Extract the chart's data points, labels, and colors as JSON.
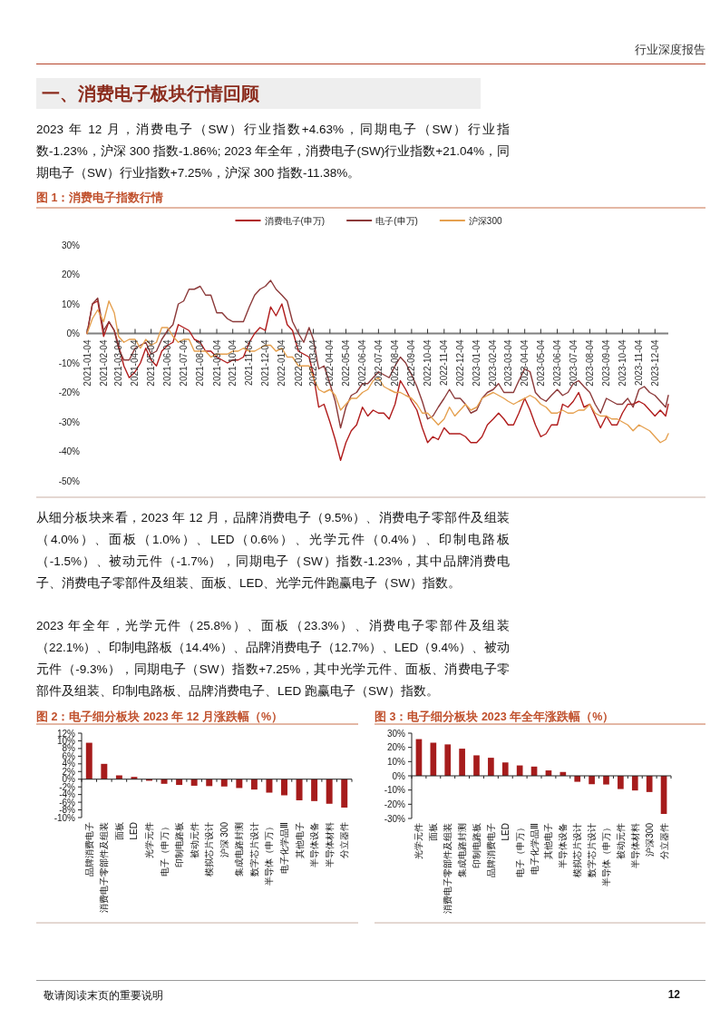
{
  "chart_data": [
    {
      "type": "other",
      "title": "一、消费电子板块行情回顾",
      "annotations": [
        "行业深度报告",
        "2023 年 12 月，消费电子（SW）行业指数+4.63%，同期电子（SW）行业指数-1.23%，沪深 300 指数-1.86%; 2023 年全年，消费电子(SW)行业指数+21.04%，同期电子（SW）行业指数+7.25%，沪深 300 指数-11.38%。"
      ]
    },
    {
      "type": "line",
      "title": "图 1：消费电子指数行情",
      "x": [
        "2021-01-04",
        "2021-01-14",
        "2021-01-24",
        "2021-02-04",
        "2021-02-14",
        "2021-02-24",
        "2021-03-04",
        "2021-03-14",
        "2021-03-24",
        "2021-04-04",
        "2021-04-14",
        "2021-04-24",
        "2021-05-04",
        "2021-05-14",
        "2021-05-24",
        "2021-06-04",
        "2021-06-14",
        "2021-06-24",
        "2021-07-04",
        "2021-07-14",
        "2021-07-24",
        "2021-08-04",
        "2021-08-14",
        "2021-08-24",
        "2021-09-04",
        "2021-09-14",
        "2021-09-24",
        "2021-10-04",
        "2021-10-14",
        "2021-10-24",
        "2021-11-04",
        "2021-11-14",
        "2021-11-24",
        "2021-12-04",
        "2021-12-14",
        "2021-12-24",
        "2022-01-04",
        "2022-01-14",
        "2022-01-24",
        "2022-02-04",
        "2022-02-14",
        "2022-02-24",
        "2022-03-04",
        "2022-03-14",
        "2022-03-24",
        "2022-04-04",
        "2022-04-14",
        "2022-04-24",
        "2022-05-04",
        "2022-05-14",
        "2022-05-24",
        "2022-06-04",
        "2022-06-14",
        "2022-06-24",
        "2022-07-04",
        "2022-07-14",
        "2022-07-24",
        "2022-08-04",
        "2022-08-14",
        "2022-08-24",
        "2022-09-04",
        "2022-09-14",
        "2022-09-24",
        "2022-10-04",
        "2022-10-14",
        "2022-10-24",
        "2022-11-04",
        "2022-11-14",
        "2022-11-24",
        "2022-12-04",
        "2022-12-14",
        "2022-12-24",
        "2023-01-04",
        "2023-01-14",
        "2023-01-24",
        "2023-02-04",
        "2023-02-14",
        "2023-02-24",
        "2023-03-04",
        "2023-03-14",
        "2023-03-24",
        "2023-04-04",
        "2023-04-14",
        "2023-04-24",
        "2023-05-04",
        "2023-05-14",
        "2023-05-24",
        "2023-06-04",
        "2023-06-14",
        "2023-06-24",
        "2023-07-04",
        "2023-07-14",
        "2023-07-24",
        "2023-08-04",
        "2023-08-14",
        "2023-08-24",
        "2023-09-04",
        "2023-09-14",
        "2023-09-24",
        "2023-10-04",
        "2023-10-14",
        "2023-10-24",
        "2023-11-04",
        "2023-11-14",
        "2023-11-24",
        "2023-12-04",
        "2023-12-14",
        "2023-12-24",
        "2023-12-29"
      ],
      "series": [
        {
          "name": "消费电子(申万)",
          "color": "#b01c1c",
          "values": [
            0,
            10,
            11,
            -1,
            4,
            1,
            -4,
            -11,
            -15,
            -13,
            -10,
            -5,
            -9,
            -11,
            -6,
            -4,
            -3,
            3,
            2,
            1,
            -2,
            -3,
            -6,
            -6,
            -8,
            -9,
            -10,
            -9,
            -9,
            -8,
            -3,
            0,
            2,
            1,
            9,
            6,
            10,
            3,
            1,
            -6,
            -7,
            -8,
            -14,
            -25,
            -24,
            -30,
            -36,
            -43,
            -37,
            -33,
            -31,
            -25,
            -28,
            -26,
            -27,
            -27,
            -29,
            -24,
            -16,
            -19,
            -23,
            -26,
            -32,
            -37,
            -35,
            -36,
            -32,
            -34,
            -34,
            -34,
            -35,
            -37,
            -37,
            -35,
            -31,
            -29,
            -27,
            -29,
            -31,
            -31,
            -27,
            -22,
            -26,
            -31,
            -35,
            -34,
            -31,
            -31,
            -24,
            -25,
            -23,
            -20,
            -25,
            -24,
            -28,
            -32,
            -28,
            -31,
            -31,
            -27,
            -24,
            -24,
            -23,
            -24,
            -26,
            -28,
            -26,
            -28,
            -24
          ]
        },
        {
          "name": "电子(申万)",
          "color": "#8c3a3a",
          "values": [
            0,
            10,
            12,
            1,
            4,
            1,
            -5,
            -9,
            -9,
            -5,
            -4,
            -3,
            -7,
            -6,
            -2,
            1,
            3,
            10,
            11,
            15,
            15,
            16,
            13,
            13,
            7,
            7,
            5,
            4,
            4,
            4,
            9,
            13,
            15,
            16,
            18,
            15,
            13,
            11,
            4,
            0,
            -3,
            2,
            -2,
            -12,
            -11,
            -17,
            -23,
            -32,
            -25,
            -21,
            -20,
            -17,
            -17,
            -15,
            -13,
            -14,
            -15,
            -11,
            -8,
            -10,
            -14,
            -18,
            -23,
            -29,
            -28,
            -25,
            -22,
            -19,
            -22,
            -22,
            -24,
            -27,
            -26,
            -22,
            -20,
            -19,
            -17,
            -20,
            -20,
            -20,
            -16,
            -12,
            -13,
            -20,
            -22,
            -23,
            -21,
            -19,
            -21,
            -20,
            -17,
            -16,
            -18,
            -20,
            -24,
            -27,
            -22,
            -23,
            -24,
            -24,
            -22,
            -25,
            -19,
            -18,
            -20,
            -21,
            -23,
            -25,
            -21
          ]
        },
        {
          "name": "沪深300",
          "color": "#e5a04f",
          "values": [
            0,
            5,
            8,
            4,
            11,
            7,
            -1,
            -3,
            -2,
            -2,
            -5,
            -2,
            -4,
            -3,
            2,
            2,
            -1,
            -3,
            -2,
            -2,
            -6,
            -6,
            -6,
            -8,
            -7,
            -7,
            -7,
            -6,
            -6,
            -5,
            -6,
            -6,
            -5,
            -4,
            -4,
            -6,
            -5,
            -8,
            -8,
            -11,
            -11,
            -11,
            -15,
            -19,
            -20,
            -19,
            -21,
            -26,
            -24,
            -22,
            -22,
            -20,
            -19,
            -16,
            -15,
            -18,
            -19,
            -20,
            -20,
            -21,
            -22,
            -24,
            -27,
            -27,
            -29,
            -31,
            -29,
            -25,
            -28,
            -26,
            -24,
            -26,
            -25,
            -22,
            -21,
            -20,
            -21,
            -22,
            -23,
            -24,
            -23,
            -22,
            -21,
            -22,
            -24,
            -25,
            -27,
            -27,
            -26,
            -27,
            -27,
            -26,
            -26,
            -24,
            -27,
            -28,
            -28,
            -29,
            -29,
            -30,
            -31,
            -33,
            -31,
            -32,
            -33,
            -35,
            -37,
            -36,
            -34
          ]
        }
      ],
      "xlim": [
        "2021-01-04",
        "2023-12-29"
      ],
      "xticks": [
        "2021-01-04",
        "2021-02-04",
        "2021-03-04",
        "2021-04-04",
        "2021-05-04",
        "2021-06-04",
        "2021-07-04",
        "2021-08-04",
        "2021-09-04",
        "2021-10-04",
        "2021-11-04",
        "2021-12-04",
        "2022-01-04",
        "2022-02-04",
        "2022-03-04",
        "2022-04-04",
        "2022-05-04",
        "2022-06-04",
        "2022-07-04",
        "2022-08-04",
        "2022-09-04",
        "2022-10-04",
        "2022-11-04",
        "2022-12-04",
        "2023-01-04",
        "2023-02-04",
        "2023-03-04",
        "2023-04-04",
        "2023-05-04",
        "2023-06-04",
        "2023-07-04",
        "2023-08-04",
        "2023-09-04",
        "2023-10-04",
        "2023-11-04",
        "2023-12-04"
      ],
      "ylim": [
        -50,
        30
      ],
      "yticks": [
        {
          "value": 30,
          "label": "30%"
        },
        {
          "value": 20,
          "label": "20%"
        },
        {
          "value": 10,
          "label": "10%"
        },
        {
          "value": 0,
          "label": "0%"
        },
        {
          "value": -10,
          "label": "-10%"
        },
        {
          "value": -20,
          "label": "-20%"
        },
        {
          "value": -30,
          "label": "-30%"
        },
        {
          "value": -40,
          "label": "-40%"
        },
        {
          "value": -50,
          "label": "-50%"
        }
      ],
      "legend": "top"
    },
    {
      "type": "other",
      "annotations": [
        "从细分板块来看，2023 年 12 月，品牌消费电子（9.5%）、消费电子零部件及组装（4.0%）、面板（1.0%）、LED（0.6%）、光学元件（0.4%）、印制电路板（-1.5%）、被动元件（-1.7%），同期电子（SW）指数-1.23%，其中品牌消费电子、消费电子零部件及组装、面板、LED、光学元件跑赢电子（SW）指数。",
        "2023 年全年，光学元件（25.8%）、面板（23.3%）、消费电子零部件及组装（22.1%）、印制电路板（14.4%）、品牌消费电子（12.7%）、LED（9.4%）、被动元件（-9.3%），同期电子（SW）指数+7.25%，其中光学元件、面板、消费电子零部件及组装、印制电路板、品牌消费电子、LED 跑赢电子（SW）指数。"
      ]
    },
    {
      "type": "bar",
      "title": "图 2：电子细分板块 2023 年 12 月涨跌幅（%）",
      "categories": [
        "品牌消费电子",
        "消费电子零部件及组装",
        "面板",
        "LED",
        "光学元件",
        "电子（申万）",
        "印制电路板",
        "被动元件",
        "模拟芯片设计",
        "沪深 300",
        "集成电路封测",
        "数字芯片设计",
        "半导体（申万）",
        "电子化学品Ⅲ",
        "其他电子",
        "半导体设备",
        "半导体材料",
        "分立器件"
      ],
      "values": [
        9.5,
        4.0,
        1.0,
        0.6,
        -0.4,
        -1.2,
        -1.5,
        -1.7,
        -1.8,
        -1.9,
        -2.3,
        -2.7,
        -3.5,
        -4.2,
        -5.5,
        -5.7,
        -6.4,
        -7.4
      ],
      "color": "#a61c1c",
      "ylim": [
        -10,
        12
      ],
      "yticks": [
        {
          "value": 12,
          "label": "12%"
        },
        {
          "value": 10,
          "label": "10%"
        },
        {
          "value": 8,
          "label": "8%"
        },
        {
          "value": 6,
          "label": "6%"
        },
        {
          "value": 4,
          "label": "4%"
        },
        {
          "value": 2,
          "label": "2%"
        },
        {
          "value": 0,
          "label": "0%"
        },
        {
          "value": -2,
          "label": "-2%"
        },
        {
          "value": -4,
          "label": "-4%"
        },
        {
          "value": -6,
          "label": "-6%"
        },
        {
          "value": -8,
          "label": "-8%"
        },
        {
          "value": -10,
          "label": "-10%"
        }
      ]
    },
    {
      "type": "bar",
      "title": "图 3：电子细分板块 2023 年全年涨跌幅（%）",
      "categories": [
        "光学元件",
        "面板",
        "消费电子零部件及组装",
        "集成电路封测",
        "印制电路板",
        "品牌消费电子",
        "LED",
        "电子（申万）",
        "电子化学品Ⅲ",
        "其他电子",
        "半导体设备",
        "模拟芯片设计",
        "数字芯片设计",
        "半导体（申万）",
        "被动元件",
        "半导体材料",
        "沪深300",
        "分立器件"
      ],
      "values": [
        25.8,
        23.3,
        22.1,
        19.1,
        14.4,
        12.7,
        9.4,
        7.3,
        6.5,
        3.8,
        2.7,
        -4.2,
        -5.9,
        -6.1,
        -9.3,
        -10.3,
        -11.4,
        -26.8
      ],
      "color": "#a61c1c",
      "ylim": [
        -30,
        30
      ],
      "yticks": [
        {
          "value": 30,
          "label": "30%"
        },
        {
          "value": 20,
          "label": "20%"
        },
        {
          "value": 10,
          "label": "10%"
        },
        {
          "value": 0,
          "label": "0%"
        },
        {
          "value": -10,
          "label": "-10%"
        },
        {
          "value": -20,
          "label": "-20%"
        },
        {
          "value": -30,
          "label": "-30%"
        }
      ]
    },
    {
      "type": "other",
      "annotations": [
        "敬请阅读末页的重要说明",
        "12"
      ]
    }
  ]
}
